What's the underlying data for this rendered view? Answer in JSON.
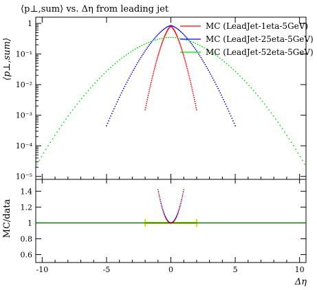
{
  "chart_data": {
    "type": "scatter",
    "title": "⟨p⊥,sum⟩ vs. Δη from leading jet",
    "xlabel": "Δη",
    "ylabel_main": "⟨p⊥,sum⟩",
    "ylabel_ratio": "MC/data",
    "xlim": [
      -10.5,
      10.5
    ],
    "ylim_main_log": [
      8e-06,
      1.6
    ],
    "ylim_ratio": [
      0.5,
      1.55
    ],
    "x_ticks": [
      -10,
      -5,
      0,
      5,
      10
    ],
    "x_tick_labels": [
      "-10",
      "-5",
      "0",
      "5",
      "10"
    ],
    "y_ticks_main": [
      1,
      0.1,
      0.01,
      0.001,
      0.0001,
      1e-05
    ],
    "y_tick_labels_main": [
      "1",
      "10⁻¹",
      "10⁻²",
      "10⁻³",
      "10⁻⁴",
      "10⁻⁵"
    ],
    "y_ticks_ratio": [
      0.6,
      0.8,
      1.0,
      1.2,
      1.4
    ],
    "y_tick_labels_ratio": [
      "0.6",
      "0.8",
      "1",
      "1.2",
      "1.4"
    ],
    "legend_position": "top-right",
    "series": [
      {
        "name": "MC (LeadJet-1eta-5GeV)",
        "color": "#ff0000",
        "eta_max": 2.0,
        "peak": 0.8,
        "edge": 0.0015
      },
      {
        "name": "MC (LeadJet-25eta-5GeV)",
        "color": "#0000ff",
        "eta_max": 5.0,
        "peak": 0.85,
        "edge": 0.00045
      },
      {
        "name": "MC (LeadJet-52eta-5GeV)",
        "color": "#00e000",
        "eta_max": 10.4,
        "peak": 0.35,
        "edge": 2.5e-05
      }
    ],
    "ratio_band": {
      "color": "#dddd00",
      "x_range": [
        -2.0,
        2.0
      ],
      "value": 1.0,
      "error": 0.05
    },
    "ratio_line": {
      "color": "#008000",
      "value": 1.0
    }
  }
}
